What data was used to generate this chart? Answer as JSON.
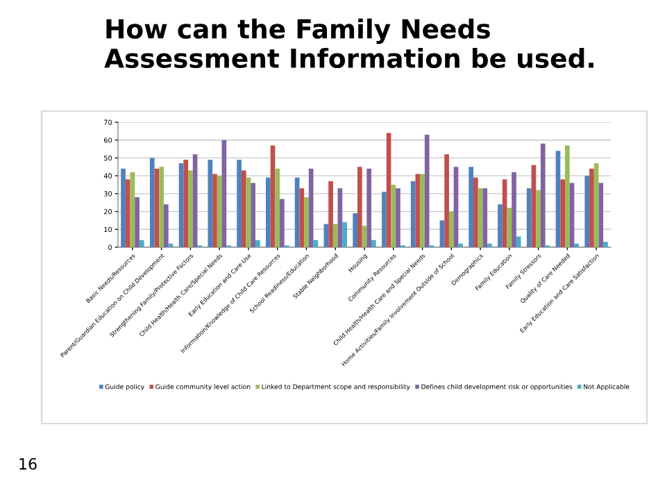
{
  "chart_data": {
    "type": "bar",
    "title": "How can the Family Needs Assessment Information be used.",
    "categories": [
      "Basic Needs/Resources",
      "Parent/Guardian Education on Child Development",
      "Strengthening Family/Protective Factors",
      "Child Health/Health Care/Special Needs",
      "Early Education and Care Use",
      "Information/Knowledge of Child Care Resources",
      "School Readiness/Education",
      "Stable Neighborhood",
      "Housing",
      "Community Resources",
      "Child Health/Health Care and Special Needs",
      "Home Activities/Family Involvement Outside of School",
      "Demographics",
      "Family Education",
      "Family Stressors",
      "Quality of Care Needed",
      "Early Education and Care Satisfaction"
    ],
    "series": [
      {
        "name": "Guide policy",
        "color": "#4f81bd",
        "values": [
          44,
          50,
          47,
          49,
          49,
          39,
          39,
          13,
          19,
          31,
          37,
          15,
          45,
          24,
          33,
          54,
          40
        ]
      },
      {
        "name": "Guide community level action",
        "color": "#c0504d",
        "values": [
          38,
          44,
          49,
          41,
          43,
          57,
          33,
          37,
          45,
          64,
          41,
          52,
          39,
          38,
          46,
          38,
          44
        ]
      },
      {
        "name": "Linked to Department scope and responsibility",
        "color": "#9bbb59",
        "values": [
          42,
          45,
          43,
          40,
          39,
          44,
          28,
          13,
          12,
          35,
          41,
          20,
          33,
          22,
          32,
          57,
          47
        ]
      },
      {
        "name": "Defines child development risk or opportunities",
        "color": "#8064a2",
        "values": [
          28,
          24,
          52,
          60,
          36,
          27,
          44,
          33,
          44,
          33,
          63,
          45,
          33,
          42,
          58,
          36,
          36
        ]
      },
      {
        "name": "Not Applicable",
        "color": "#4bacc6",
        "values": [
          4,
          2,
          1,
          1,
          4,
          1,
          4,
          14,
          4,
          1,
          1,
          2,
          2,
          6,
          1,
          2,
          3
        ]
      }
    ],
    "ylim": [
      0,
      70
    ],
    "yticks": [
      0,
      10,
      20,
      30,
      40,
      50,
      60,
      70
    ],
    "grid": "y",
    "legend": "bottom",
    "annotations": [
      "16"
    ]
  }
}
